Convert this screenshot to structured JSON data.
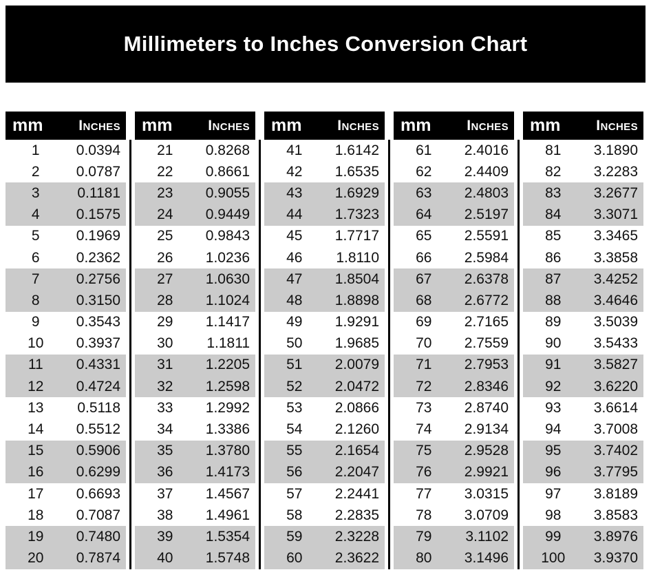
{
  "title": "Millimeters to Inches Conversion Chart",
  "colors": {
    "bar_bg": "#000000",
    "bar_text": "#ffffff",
    "shaded_row_bg": "#cbcbcb",
    "data_text": "#111111",
    "page_bg": "#ffffff"
  },
  "chart_data": {
    "type": "table",
    "title": "Millimeters to Inches Conversion Chart",
    "columns": [
      "mm",
      "Inches"
    ],
    "layout": {
      "column_groups": 5,
      "rows_per_group": 20,
      "shading": "rows 3-4 of every 4 shaded gray"
    },
    "groups": [
      {
        "rows": [
          [
            "1",
            "0.0394"
          ],
          [
            "2",
            "0.0787"
          ],
          [
            "3",
            "0.1181"
          ],
          [
            "4",
            "0.1575"
          ],
          [
            "5",
            "0.1969"
          ],
          [
            "6",
            "0.2362"
          ],
          [
            "7",
            "0.2756"
          ],
          [
            "8",
            "0.3150"
          ],
          [
            "9",
            "0.3543"
          ],
          [
            "10",
            "0.3937"
          ],
          [
            "11",
            "0.4331"
          ],
          [
            "12",
            "0.4724"
          ],
          [
            "13",
            "0.5118"
          ],
          [
            "14",
            "0.5512"
          ],
          [
            "15",
            "0.5906"
          ],
          [
            "16",
            "0.6299"
          ],
          [
            "17",
            "0.6693"
          ],
          [
            "18",
            "0.7087"
          ],
          [
            "19",
            "0.7480"
          ],
          [
            "20",
            "0.7874"
          ]
        ]
      },
      {
        "rows": [
          [
            "21",
            "0.8268"
          ],
          [
            "22",
            "0.8661"
          ],
          [
            "23",
            "0.9055"
          ],
          [
            "24",
            "0.9449"
          ],
          [
            "25",
            "0.9843"
          ],
          [
            "26",
            "1.0236"
          ],
          [
            "27",
            "1.0630"
          ],
          [
            "28",
            "1.1024"
          ],
          [
            "29",
            "1.1417"
          ],
          [
            "30",
            "1.1811"
          ],
          [
            "31",
            "1.2205"
          ],
          [
            "32",
            "1.2598"
          ],
          [
            "33",
            "1.2992"
          ],
          [
            "34",
            "1.3386"
          ],
          [
            "35",
            "1.3780"
          ],
          [
            "36",
            "1.4173"
          ],
          [
            "37",
            "1.4567"
          ],
          [
            "38",
            "1.4961"
          ],
          [
            "39",
            "1.5354"
          ],
          [
            "40",
            "1.5748"
          ]
        ]
      },
      {
        "rows": [
          [
            "41",
            "1.6142"
          ],
          [
            "42",
            "1.6535"
          ],
          [
            "43",
            "1.6929"
          ],
          [
            "44",
            "1.7323"
          ],
          [
            "45",
            "1.7717"
          ],
          [
            "46",
            "1.8110"
          ],
          [
            "47",
            "1.8504"
          ],
          [
            "48",
            "1.8898"
          ],
          [
            "49",
            "1.9291"
          ],
          [
            "50",
            "1.9685"
          ],
          [
            "51",
            "2.0079"
          ],
          [
            "52",
            "2.0472"
          ],
          [
            "53",
            "2.0866"
          ],
          [
            "54",
            "2.1260"
          ],
          [
            "55",
            "2.1654"
          ],
          [
            "56",
            "2.2047"
          ],
          [
            "57",
            "2.2441"
          ],
          [
            "58",
            "2.2835"
          ],
          [
            "59",
            "2.3228"
          ],
          [
            "60",
            "2.3622"
          ]
        ]
      },
      {
        "rows": [
          [
            "61",
            "2.4016"
          ],
          [
            "62",
            "2.4409"
          ],
          [
            "63",
            "2.4803"
          ],
          [
            "64",
            "2.5197"
          ],
          [
            "65",
            "2.5591"
          ],
          [
            "66",
            "2.5984"
          ],
          [
            "67",
            "2.6378"
          ],
          [
            "68",
            "2.6772"
          ],
          [
            "69",
            "2.7165"
          ],
          [
            "70",
            "2.7559"
          ],
          [
            "71",
            "2.7953"
          ],
          [
            "72",
            "2.8346"
          ],
          [
            "73",
            "2.8740"
          ],
          [
            "74",
            "2.9134"
          ],
          [
            "75",
            "2.9528"
          ],
          [
            "76",
            "2.9921"
          ],
          [
            "77",
            "3.0315"
          ],
          [
            "78",
            "3.0709"
          ],
          [
            "79",
            "3.1102"
          ],
          [
            "80",
            "3.1496"
          ]
        ]
      },
      {
        "rows": [
          [
            "81",
            "3.1890"
          ],
          [
            "82",
            "3.2283"
          ],
          [
            "83",
            "3.2677"
          ],
          [
            "84",
            "3.3071"
          ],
          [
            "85",
            "3.3465"
          ],
          [
            "86",
            "3.3858"
          ],
          [
            "87",
            "3.4252"
          ],
          [
            "88",
            "3.4646"
          ],
          [
            "89",
            "3.5039"
          ],
          [
            "90",
            "3.5433"
          ],
          [
            "91",
            "3.5827"
          ],
          [
            "92",
            "3.6220"
          ],
          [
            "93",
            "3.6614"
          ],
          [
            "94",
            "3.7008"
          ],
          [
            "95",
            "3.7402"
          ],
          [
            "96",
            "3.7795"
          ],
          [
            "97",
            "3.8189"
          ],
          [
            "98",
            "3.8583"
          ],
          [
            "99",
            "3.8976"
          ],
          [
            "100",
            "3.9370"
          ]
        ]
      }
    ]
  }
}
